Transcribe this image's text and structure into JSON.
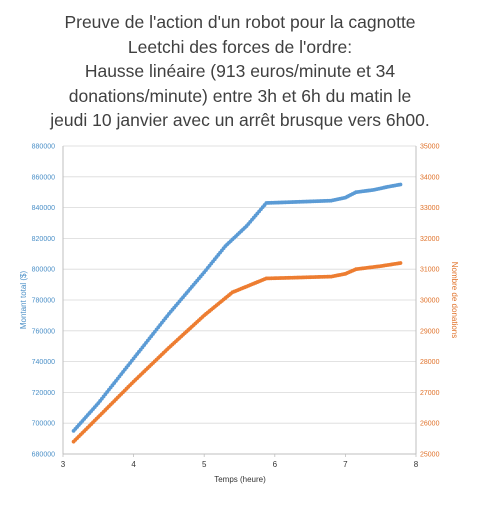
{
  "title_lines": [
    "Preuve de l'action d'un robot pour la cagnotte",
    "Leetchi des forces de l'ordre:",
    "Hausse linéaire (913 euros/minute et 34",
    "donations/minute) entre 3h et 6h du matin le",
    "jeudi 10 janvier avec un arrêt brusque vers 6h00."
  ],
  "chart_data": {
    "type": "scatter",
    "xlabel": "Temps (heure)",
    "ylabel": "Montant total ($)",
    "y2label": "Nombre de donations",
    "xlim": [
      3,
      8
    ],
    "ylim": [
      680000,
      880000
    ],
    "y2lim": [
      25000,
      35000
    ],
    "xticks": [
      "3",
      "4",
      "5",
      "6",
      "7",
      "8"
    ],
    "yticks": [
      "680000",
      "700000",
      "720000",
      "740000",
      "760000",
      "780000",
      "800000",
      "820000",
      "840000",
      "860000",
      "880000"
    ],
    "y2ticks": [
      "25000",
      "26000",
      "27000",
      "28000",
      "29000",
      "30000",
      "31000",
      "32000",
      "33000",
      "34000",
      "35000"
    ],
    "grid": "horizontal",
    "legend": "none",
    "colors": {
      "amount": "#5b9bd5",
      "donations": "#ed7d31"
    },
    "series": [
      {
        "axis": "left",
        "points": [
          [
            3.15,
            695000
          ],
          [
            3.5,
            713000
          ],
          [
            4.0,
            742000
          ],
          [
            4.5,
            771000
          ],
          [
            5.0,
            798000
          ],
          [
            5.3,
            815000
          ],
          [
            5.6,
            828000
          ],
          [
            5.88,
            843000
          ],
          [
            6.2,
            843500
          ],
          [
            6.5,
            844000
          ],
          [
            6.8,
            844500
          ],
          [
            7.0,
            846500
          ],
          [
            7.15,
            850000
          ],
          [
            7.4,
            851500
          ],
          [
            7.6,
            853500
          ],
          [
            7.78,
            855000
          ]
        ]
      },
      {
        "axis": "right",
        "points": [
          [
            3.15,
            25400
          ],
          [
            3.5,
            26200
          ],
          [
            4.0,
            27350
          ],
          [
            4.5,
            28450
          ],
          [
            5.0,
            29500
          ],
          [
            5.4,
            30250
          ],
          [
            5.88,
            30700
          ],
          [
            6.2,
            30720
          ],
          [
            6.5,
            30740
          ],
          [
            6.8,
            30760
          ],
          [
            7.0,
            30850
          ],
          [
            7.15,
            31000
          ],
          [
            7.5,
            31100
          ],
          [
            7.78,
            31200
          ]
        ]
      }
    ]
  }
}
